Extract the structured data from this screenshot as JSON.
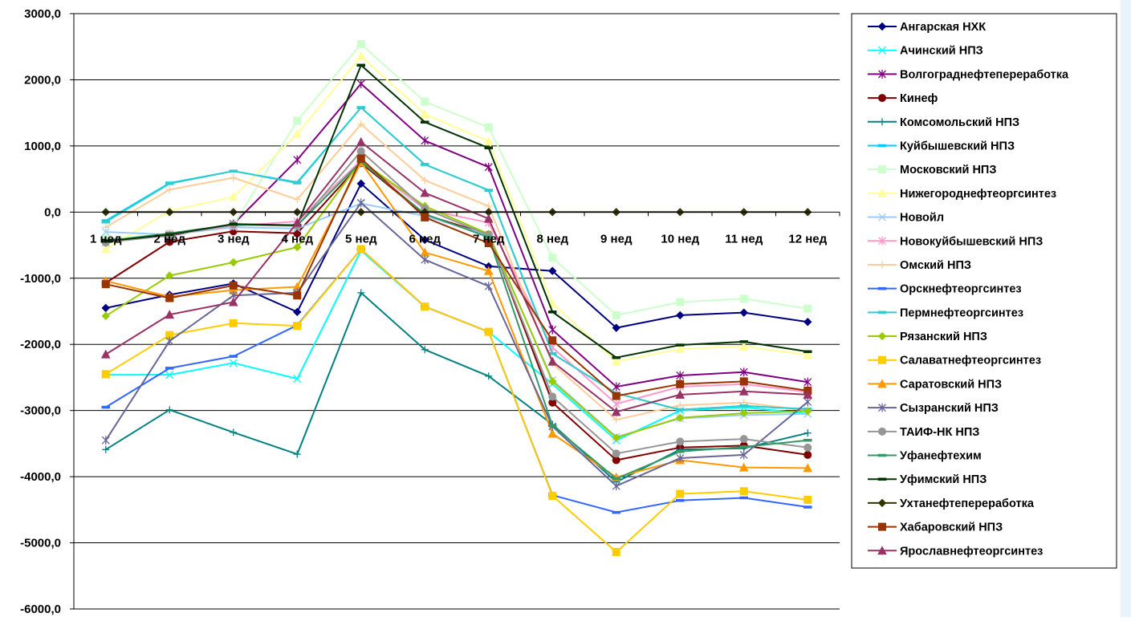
{
  "chart_data": {
    "type": "line",
    "title": "",
    "xlabel": "",
    "ylabel": "",
    "ylim": [
      -6000,
      3000
    ],
    "y_ticks": [
      3000,
      2000,
      1000,
      0,
      -1000,
      -2000,
      -3000,
      -4000,
      -5000,
      -6000
    ],
    "y_tick_labels": [
      "3000,0",
      "2000,0",
      "1000,0",
      "0,0",
      "-1000,0",
      "-2000,0",
      "-3000,0",
      "-4000,0",
      "-5000,0",
      "-6000,0"
    ],
    "categories": [
      "1 нед",
      "2 нед",
      "3 нед",
      "4 нед",
      "5 нед",
      "6 нед",
      "7 нед",
      "8 нед",
      "9 нед",
      "10 нед",
      "11 нед",
      "12 нед"
    ],
    "grid": "horizontal",
    "legend_position": "right",
    "series": [
      {
        "name": "Ангарская НХК",
        "color": "#000080",
        "marker": "diamond",
        "values": [
          -1450,
          -1250,
          -1080,
          -1510,
          430,
          -420,
          -820,
          -890,
          -1750,
          -1560,
          -1520,
          -1660
        ]
      },
      {
        "name": "Ачинский НПЗ",
        "color": "#00ffff",
        "marker": "x",
        "values": [
          -2460,
          -2460,
          -2280,
          -2520,
          -580,
          -1430,
          -1810,
          -2600,
          -3450,
          -3000,
          -2950,
          -3050
        ]
      },
      {
        "name": "Волгограднефтепереработка",
        "color": "#800080",
        "marker": "star",
        "values": [
          -420,
          -360,
          -180,
          790,
          1940,
          1080,
          680,
          -1780,
          -2640,
          -2470,
          -2420,
          -2570
        ]
      },
      {
        "name": "Кинеф",
        "color": "#800000",
        "marker": "circle",
        "values": [
          -1070,
          -450,
          -290,
          -320,
          740,
          -40,
          -340,
          -2880,
          -3750,
          -3560,
          -3530,
          -3670
        ]
      },
      {
        "name": "Комсомольский НПЗ",
        "color": "#008080",
        "marker": "plus",
        "values": [
          -3590,
          -2990,
          -3330,
          -3660,
          -1220,
          -2080,
          -2480,
          -3210,
          -4080,
          -3590,
          -3570,
          -3340
        ]
      },
      {
        "name": "Куйбышевский НПЗ",
        "color": "#00ccff",
        "marker": "dash",
        "values": [
          -130,
          440,
          620,
          450,
          1580,
          720,
          330,
          -2140,
          -2740,
          -2990,
          -2930,
          -2980
        ]
      },
      {
        "name": "Московский НПЗ",
        "color": "#ccffcc",
        "marker": "square",
        "values": [
          -400,
          -330,
          -200,
          1380,
          2540,
          1670,
          1280,
          -690,
          -1560,
          -1360,
          -1310,
          -1460
        ]
      },
      {
        "name": "Нижегороднефтеоргсинтез",
        "color": "#ffff99",
        "marker": "triangle",
        "values": [
          -560,
          20,
          230,
          1180,
          2360,
          1480,
          1070,
          -1380,
          -2260,
          -2070,
          -2030,
          -2160
        ]
      },
      {
        "name": "Новойл",
        "color": "#99ccff",
        "marker": "x",
        "values": [
          -300,
          -340,
          -230,
          -250,
          130,
          -60,
          -350,
          -2540,
          -3400,
          -3120,
          -3070,
          -3050
        ]
      },
      {
        "name": "Новокуйбышевский НПЗ",
        "color": "#ff99cc",
        "marker": "star",
        "values": [
          -460,
          -330,
          -210,
          -140,
          780,
          40,
          -160,
          -2050,
          -2900,
          -2640,
          -2600,
          -2720
        ]
      },
      {
        "name": "Омский НПЗ",
        "color": "#ffcc99",
        "marker": "plus",
        "values": [
          -230,
          340,
          520,
          190,
          1330,
          480,
          90,
          -2290,
          -3140,
          -2920,
          -2880,
          -3000
        ]
      },
      {
        "name": "Орскнефтеоргсинтез",
        "color": "#3366ff",
        "marker": "dash",
        "values": [
          -2950,
          -2360,
          -2180,
          -1710,
          -560,
          -1430,
          -1810,
          -4280,
          -4540,
          -4360,
          -4320,
          -4460
        ]
      },
      {
        "name": "Пермнефтеоргсинтез",
        "color": "#33cccc",
        "marker": "dash",
        "values": [
          -150,
          430,
          620,
          440,
          1580,
          720,
          330,
          -2140,
          -2740,
          -2990,
          -2930,
          -2980
        ]
      },
      {
        "name": "Рязанский НПЗ",
        "color": "#99cc00",
        "marker": "diamond",
        "values": [
          -1570,
          -960,
          -760,
          -530,
          770,
          90,
          -330,
          -2560,
          -3410,
          -3110,
          -3040,
          -3010
        ]
      },
      {
        "name": "Салаватнефтеоргсинтез",
        "color": "#ffcc00",
        "marker": "square",
        "values": [
          -2450,
          -1860,
          -1680,
          -1720,
          -560,
          -1430,
          -1810,
          -4290,
          -5140,
          -4260,
          -4220,
          -4350
        ]
      },
      {
        "name": "Саратовский НПЗ",
        "color": "#ff9900",
        "marker": "triangle",
        "values": [
          -1040,
          -1280,
          -1180,
          -1130,
          750,
          -610,
          -890,
          -3350,
          -4010,
          -3750,
          -3860,
          -3870
        ]
      },
      {
        "name": "Сызранский НПЗ",
        "color": "#666699",
        "marker": "star",
        "values": [
          -3450,
          -1950,
          -1260,
          -1220,
          140,
          -720,
          -1120,
          -3240,
          -4140,
          -3720,
          -3670,
          -2870
        ]
      },
      {
        "name": "ТАИФ-НК НПЗ",
        "color": "#969696",
        "marker": "circle",
        "values": [
          -460,
          -350,
          -190,
          -210,
          920,
          50,
          -350,
          -2790,
          -3650,
          -3470,
          -3430,
          -3560
        ]
      },
      {
        "name": "Уфанефтехим",
        "color": "#339966",
        "marker": "dash",
        "values": [
          -440,
          -320,
          -190,
          -200,
          760,
          -30,
          -380,
          -3230,
          -4030,
          -3620,
          -3550,
          -3450
        ]
      },
      {
        "name": "Уфимский НПЗ",
        "color": "#003300",
        "marker": "dash",
        "values": [
          -440,
          -340,
          -180,
          -200,
          2220,
          1360,
          970,
          -1510,
          -2200,
          -2010,
          -1960,
          -2110
        ]
      },
      {
        "name": "Ухтанефтепереработка",
        "color": "#333300",
        "marker": "diamond",
        "values": [
          0,
          0,
          0,
          0,
          0,
          0,
          0,
          0,
          0,
          0,
          0,
          0
        ]
      },
      {
        "name": "Хабаровский НПЗ",
        "color": "#993300",
        "marker": "square",
        "values": [
          -1090,
          -1300,
          -1110,
          -1260,
          810,
          -80,
          -470,
          -1940,
          -2780,
          -2600,
          -2560,
          -2700
        ]
      },
      {
        "name": "Ярославнефтеоргсинтез",
        "color": "#993366",
        "marker": "triangle",
        "values": [
          -2150,
          -1550,
          -1360,
          -160,
          1060,
          290,
          -100,
          -2260,
          -3020,
          -2760,
          -2710,
          -2760
        ]
      }
    ]
  }
}
